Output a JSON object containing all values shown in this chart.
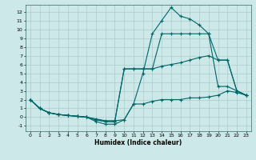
{
  "title": "",
  "xlabel": "Humidex (Indice chaleur)",
  "bg_color": "#cce8e8",
  "grid_color": "#aacccc",
  "line_color": "#006666",
  "xlim": [
    -0.5,
    23.5
  ],
  "ylim": [
    -1.6,
    12.8
  ],
  "xticks": [
    0,
    1,
    2,
    3,
    4,
    5,
    6,
    7,
    8,
    9,
    10,
    11,
    12,
    13,
    14,
    15,
    16,
    17,
    18,
    19,
    20,
    21,
    22,
    23
  ],
  "yticks": [
    -1,
    0,
    1,
    2,
    3,
    4,
    5,
    6,
    7,
    8,
    9,
    10,
    11,
    12
  ],
  "series": [
    {
      "x": [
        0,
        1,
        2,
        3,
        4,
        5,
        6,
        7,
        8,
        9,
        10,
        11,
        12,
        13,
        14,
        15,
        16,
        17,
        18,
        19,
        20,
        21,
        22,
        23
      ],
      "y": [
        2,
        1,
        0.5,
        0.3,
        0.2,
        0.1,
        0.0,
        -0.2,
        -0.4,
        -0.4,
        -0.3,
        1.5,
        1.5,
        1.8,
        2.0,
        2.0,
        2.0,
        2.2,
        2.2,
        2.3,
        2.5,
        3.0,
        2.8,
        2.5
      ]
    },
    {
      "x": [
        0,
        1,
        2,
        3,
        4,
        5,
        6,
        7,
        8,
        9,
        10,
        11,
        12,
        13,
        14,
        15,
        16,
        17,
        18,
        19,
        20,
        21,
        22,
        23
      ],
      "y": [
        2,
        1,
        0.5,
        0.3,
        0.2,
        0.1,
        0.0,
        -0.3,
        -0.5,
        -0.5,
        5.5,
        5.5,
        5.5,
        5.5,
        5.8,
        6.0,
        6.2,
        6.5,
        6.8,
        7.0,
        6.5,
        6.5,
        3.0,
        2.5
      ]
    },
    {
      "x": [
        0,
        1,
        2,
        3,
        4,
        5,
        6,
        7,
        8,
        9,
        10,
        11,
        12,
        13,
        14,
        15,
        16,
        17,
        18,
        19,
        20,
        21,
        22,
        23
      ],
      "y": [
        2,
        1,
        0.5,
        0.3,
        0.2,
        0.1,
        0.0,
        -0.3,
        -0.5,
        -0.5,
        5.5,
        5.5,
        5.5,
        5.5,
        9.5,
        9.5,
        9.5,
        9.5,
        9.5,
        9.5,
        6.5,
        6.5,
        3.0,
        2.5
      ]
    },
    {
      "x": [
        0,
        1,
        2,
        3,
        4,
        5,
        6,
        7,
        8,
        9,
        10,
        11,
        12,
        13,
        14,
        15,
        16,
        17,
        18,
        19,
        20,
        21,
        22,
        23
      ],
      "y": [
        2,
        1,
        0.5,
        0.3,
        0.2,
        0.1,
        0.0,
        -0.5,
        -0.8,
        -0.8,
        -0.3,
        1.5,
        5.0,
        9.5,
        11.0,
        12.5,
        11.5,
        11.2,
        10.5,
        9.5,
        3.5,
        3.5,
        3.0,
        2.5
      ]
    }
  ]
}
